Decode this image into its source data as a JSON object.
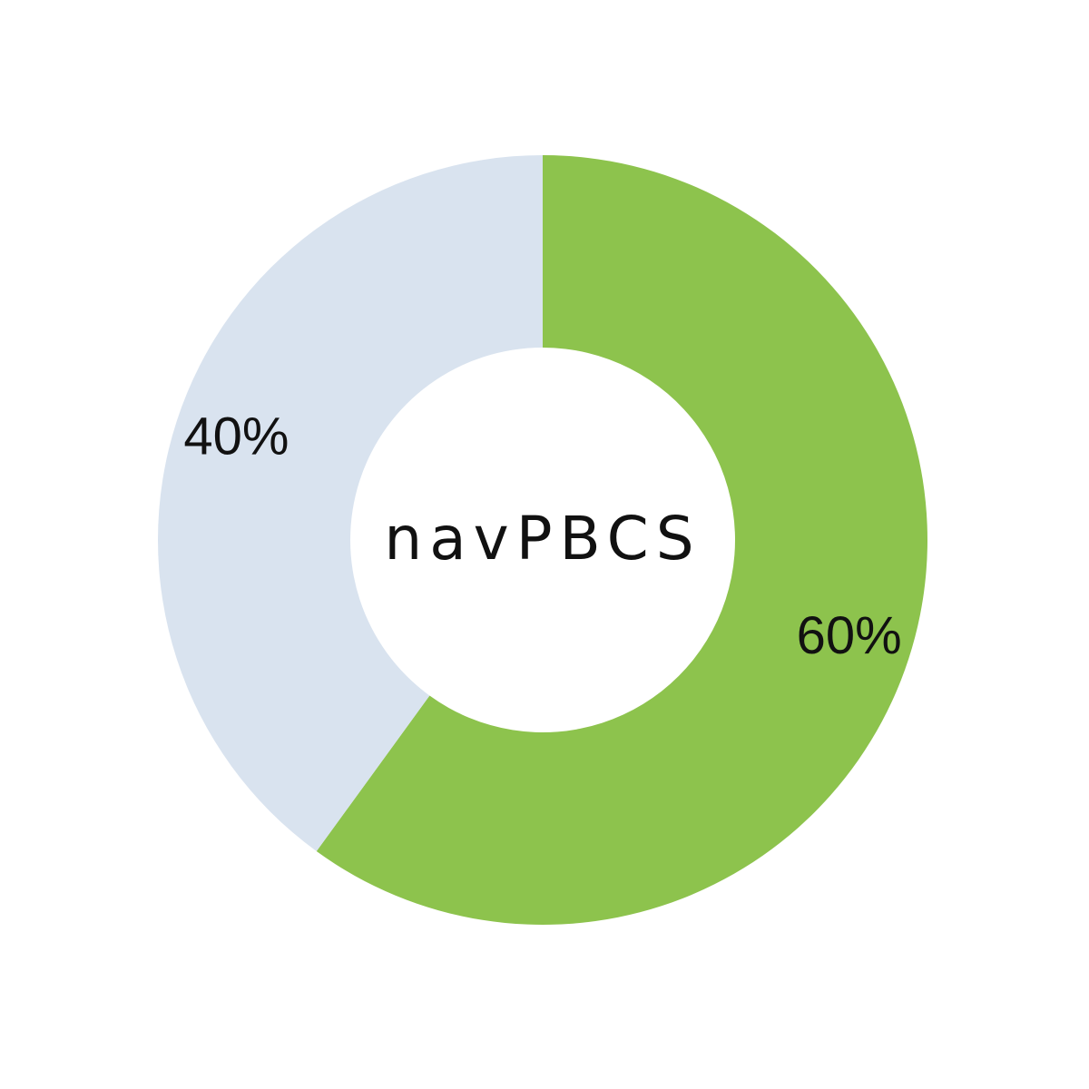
{
  "chart_data": {
    "type": "pie",
    "variant": "donut",
    "center_label": "navPBCS",
    "slices": [
      {
        "value": 60,
        "label": "60%",
        "color": "#8dc34d"
      },
      {
        "value": 40,
        "label": "40%",
        "color": "#d9e3ef"
      }
    ],
    "start_angle_deg": 0,
    "direction": "clockwise",
    "legend": "none"
  }
}
